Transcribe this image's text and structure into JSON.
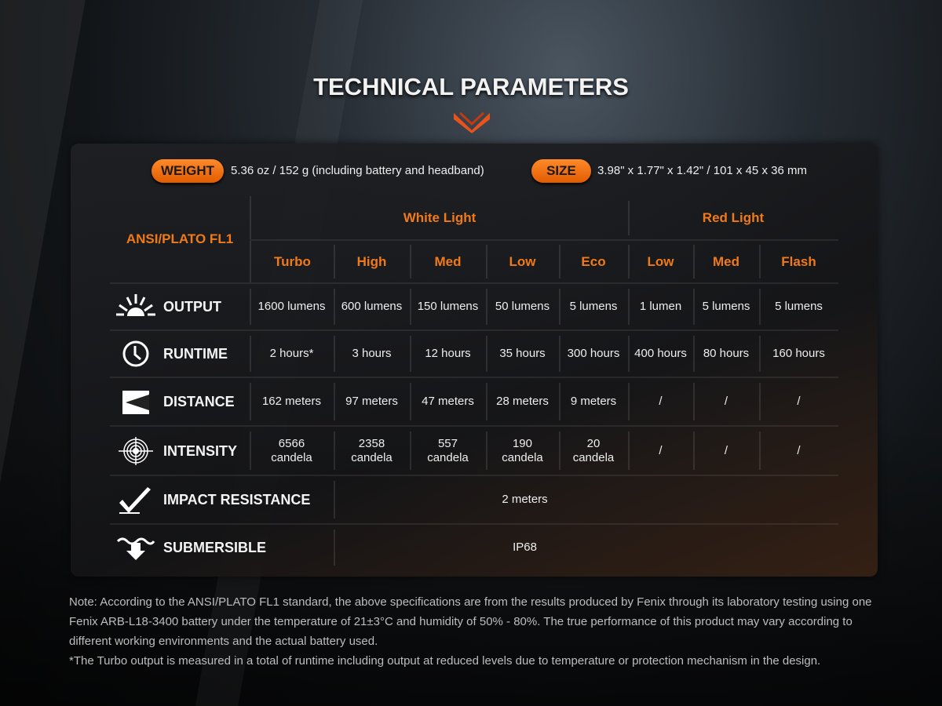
{
  "title": "TECHNICAL PARAMETERS",
  "weight": {
    "label": "WEIGHT",
    "value": "5.36 oz / 152 g (including battery and headband)"
  },
  "size": {
    "label": "SIZE",
    "value": "3.98\" x 1.77\" x 1.42\" / 101 x 45 x 36 mm"
  },
  "table": {
    "standard": "ANSI/PLATO FL1",
    "groups": [
      "White Light",
      "Red Light"
    ],
    "modes": [
      "Turbo",
      "High",
      "Med",
      "Low",
      "Eco",
      "Low",
      "Med",
      "Flash"
    ],
    "rows": [
      {
        "icon": "sun-burst-icon",
        "label": "OUTPUT",
        "values": [
          "1600 lumens",
          "600 lumens",
          "150 lumens",
          "50 lumens",
          "5 lumens",
          "1 lumen",
          "5 lumens",
          "5 lumens"
        ]
      },
      {
        "icon": "clock-icon",
        "label": "RUNTIME",
        "values": [
          "2 hours*",
          "3 hours",
          "12 hours",
          "35 hours",
          "300 hours",
          "400 hours",
          "80 hours",
          "160 hours"
        ]
      },
      {
        "icon": "beam-distance-icon",
        "label": "DISTANCE",
        "values": [
          "162 meters",
          "97 meters",
          "47 meters",
          "28 meters",
          "9 meters",
          "/",
          "/",
          "/"
        ]
      },
      {
        "icon": "target-icon",
        "label": "INTENSITY",
        "values": [
          "6566\ncandela",
          "2358\ncandela",
          "557\ncandela",
          "190\ncandela",
          "20\ncandela",
          "/",
          "/",
          "/"
        ]
      }
    ],
    "impact": {
      "icon": "impact-check-icon",
      "label": "IMPACT RESISTANCE",
      "value": "2 meters"
    },
    "submersible": {
      "icon": "submersible-arrow-icon",
      "label": "SUBMERSIBLE",
      "value": "IP68"
    }
  },
  "notes": [
    "Note: According to the ANSI/PLATO FL1 standard, the above specifications are from the results produced by Fenix through its laboratory testing using one Fenix ARB-L18-3400 battery under the temperature of 21±3°C and humidity of 50% - 80%. The true performance of this product may vary according to different working environments and the actual battery used.",
    "*The Turbo output is measured in a total of runtime including output at reduced levels due to temperature or protection mechanism in the design."
  ],
  "colors": {
    "accent": "#f07a1a",
    "pill": "#ff7a10"
  }
}
